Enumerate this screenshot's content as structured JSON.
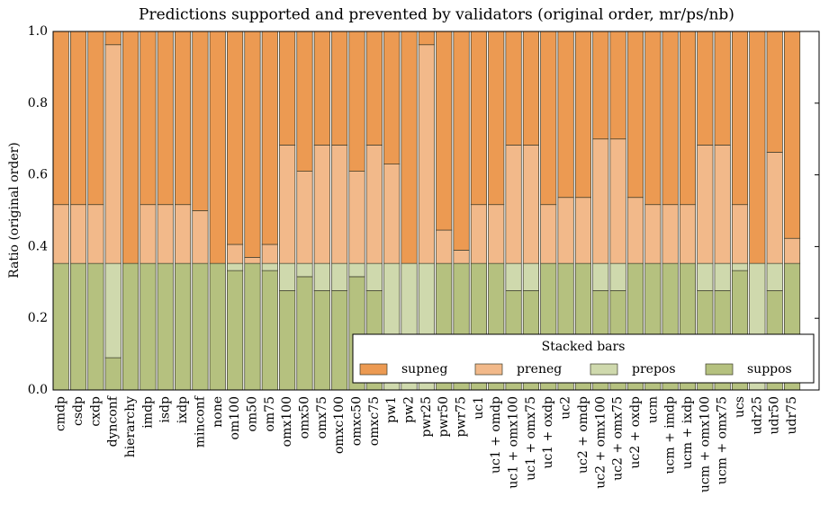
{
  "chart_data": {
    "type": "stacked-bar",
    "title": "Predictions supported and prevented by validators (original order, mr/ps/nb)",
    "ylabel": "Ratio (original order)",
    "legend_title": "Stacked bars",
    "legend_loc": "lower right",
    "ylim": [
      0,
      1
    ],
    "yticks": [
      {
        "value": 0,
        "label": "0.0"
      },
      {
        "value": 0.2,
        "label": "0.2"
      },
      {
        "value": 0.4,
        "label": "0.4"
      },
      {
        "value": 0.6,
        "label": "0.6"
      },
      {
        "value": 0.8,
        "label": "0.8"
      },
      {
        "value": 1,
        "label": "1.0"
      }
    ],
    "categories": [
      "cmdp",
      "csdp",
      "cxdp",
      "dynconf",
      "hierarchy",
      "imdp",
      "isdp",
      "ixdp",
      "minconf",
      "none",
      "om100",
      "om50",
      "om75",
      "omx100",
      "omx50",
      "omx75",
      "omxc100",
      "omxc50",
      "omxc75",
      "pw1",
      "pw2",
      "pwr25",
      "pwr50",
      "pwr75",
      "uc1",
      "uc1 + omdp",
      "uc1 + omx100",
      "uc1 + omx75",
      "uc1 + oxdp",
      "uc2",
      "uc2 + omdp",
      "uc2 + omx100",
      "uc2 + omx75",
      "uc2 + oxdp",
      "ucm",
      "ucm + imdp",
      "ucm + ixdp",
      "ucm + omx100",
      "ucm + omx75",
      "ucs",
      "udr25",
      "udr50",
      "udr75"
    ],
    "series": [
      {
        "name": "suppos",
        "color": "#b5c17f",
        "values": [
          0.353,
          0.353,
          0.353,
          0.09,
          0.353,
          0.353,
          0.353,
          0.353,
          0.353,
          0.353,
          0.333,
          0.353,
          0.333,
          0.277,
          0.316,
          0.277,
          0.277,
          0.316,
          0.277,
          0,
          0,
          0,
          0.353,
          0.353,
          0.353,
          0.353,
          0.277,
          0.277,
          0.353,
          0.353,
          0.353,
          0.277,
          0.277,
          0.353,
          0.353,
          0.353,
          0.353,
          0.277,
          0.277,
          0.333,
          0,
          0.277,
          0.353
        ]
      },
      {
        "name": "prepos",
        "color": "#cfd9ad",
        "values": [
          0,
          0,
          0,
          0.263,
          0,
          0,
          0,
          0,
          0,
          0,
          0.02,
          0,
          0.02,
          0.076,
          0.037,
          0.076,
          0.076,
          0.037,
          0.076,
          0.353,
          0.353,
          0.353,
          0,
          0,
          0,
          0,
          0.076,
          0.076,
          0,
          0,
          0,
          0.076,
          0.076,
          0,
          0,
          0,
          0,
          0.076,
          0.076,
          0.02,
          0.353,
          0.076,
          0
        ]
      },
      {
        "name": "preneg",
        "color": "#f2b98a",
        "values": [
          0.164,
          0.164,
          0.164,
          0.61,
          0,
          0.164,
          0.164,
          0.164,
          0.147,
          0,
          0.053,
          0.017,
          0.053,
          0.33,
          0.257,
          0.33,
          0.33,
          0.257,
          0.33,
          0.277,
          0,
          0.61,
          0.093,
          0.037,
          0.164,
          0.164,
          0.33,
          0.33,
          0.164,
          0.184,
          0.184,
          0.347,
          0.347,
          0.184,
          0.164,
          0.164,
          0.164,
          0.33,
          0.33,
          0.164,
          0,
          0.31,
          0.07
        ]
      },
      {
        "name": "supneg",
        "color": "#ec9a52",
        "values": [
          0.483,
          0.483,
          0.483,
          0.037,
          0.647,
          0.483,
          0.483,
          0.483,
          0.5,
          0.647,
          0.594,
          0.63,
          0.594,
          0.317,
          0.39,
          0.317,
          0.317,
          0.39,
          0.317,
          0.37,
          0.647,
          0.037,
          0.554,
          0.61,
          0.483,
          0.483,
          0.317,
          0.317,
          0.483,
          0.463,
          0.463,
          0.3,
          0.3,
          0.463,
          0.483,
          0.483,
          0.483,
          0.317,
          0.317,
          0.483,
          0.647,
          0.337,
          0.577
        ]
      }
    ]
  }
}
